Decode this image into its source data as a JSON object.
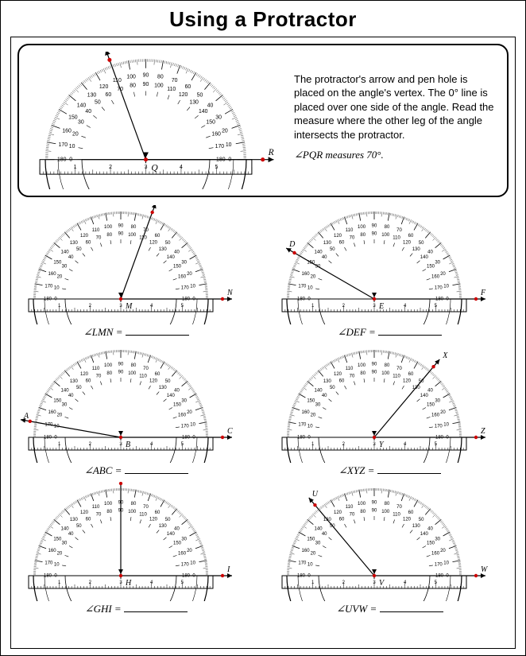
{
  "title": "Using a Protractor",
  "instructions": "The protractor's arrow and pen hole is placed on the angle's vertex.  The 0° line is placed over one side of the angle.  Read the measure where the other leg of the angle intersects the protractor.",
  "example": {
    "angle_name": "PQR",
    "measure_text": "∠PQR  measures 70°.",
    "ray_angle_deg": 70,
    "vertex_label": "Q",
    "ray1_label": "P",
    "ray2_label": "R"
  },
  "problems": [
    {
      "angle_name": "LMN",
      "ray_angle_deg": 110,
      "vertex_label": "M",
      "ray1_label": "L",
      "ray2_label": "N"
    },
    {
      "angle_name": "DEF",
      "ray_angle_deg": 30,
      "vertex_label": "E",
      "ray1_label": "D",
      "ray2_label": "F"
    },
    {
      "angle_name": "ABC",
      "ray_angle_deg": 10,
      "vertex_label": "B",
      "ray1_label": "A",
      "ray2_label": "C"
    },
    {
      "angle_name": "XYZ",
      "ray_angle_deg": 130,
      "vertex_label": "Y",
      "ray1_label": "X",
      "ray2_label": "Z"
    },
    {
      "angle_name": "GHI",
      "ray_angle_deg": 90,
      "vertex_label": "H",
      "ray1_label": "G",
      "ray2_label": "I"
    },
    {
      "angle_name": "UVW",
      "ray_angle_deg": 50,
      "vertex_label": "V",
      "ray1_label": "U",
      "ray2_label": "W"
    }
  ],
  "protractor_style": {
    "outer_radius": 110,
    "inner_radius": 70,
    "baseline_color": "#000000",
    "ray_color": "#000000",
    "point_color": "#cc0000",
    "major_ticks_deg": [
      0,
      10,
      20,
      30,
      40,
      50,
      60,
      70,
      80,
      90,
      100,
      110,
      120,
      130,
      140,
      150,
      160,
      170,
      180
    ],
    "outer_scale_labels": [
      "0",
      "10",
      "20",
      "30",
      "40",
      "50",
      "60",
      "70",
      "80",
      "90",
      "100",
      "110",
      "120",
      "130",
      "140",
      "150",
      "160",
      "170",
      "180"
    ],
    "inner_scale_labels": [
      "180",
      "170",
      "160",
      "150",
      "140",
      "130",
      "120",
      "110",
      "100",
      "90",
      "80",
      "70",
      "60",
      "50",
      "40",
      "30",
      "20",
      "10",
      "0"
    ],
    "ruler_labels": [
      "1",
      "2",
      "3",
      "4",
      "5"
    ],
    "label_fontsize": 6
  }
}
